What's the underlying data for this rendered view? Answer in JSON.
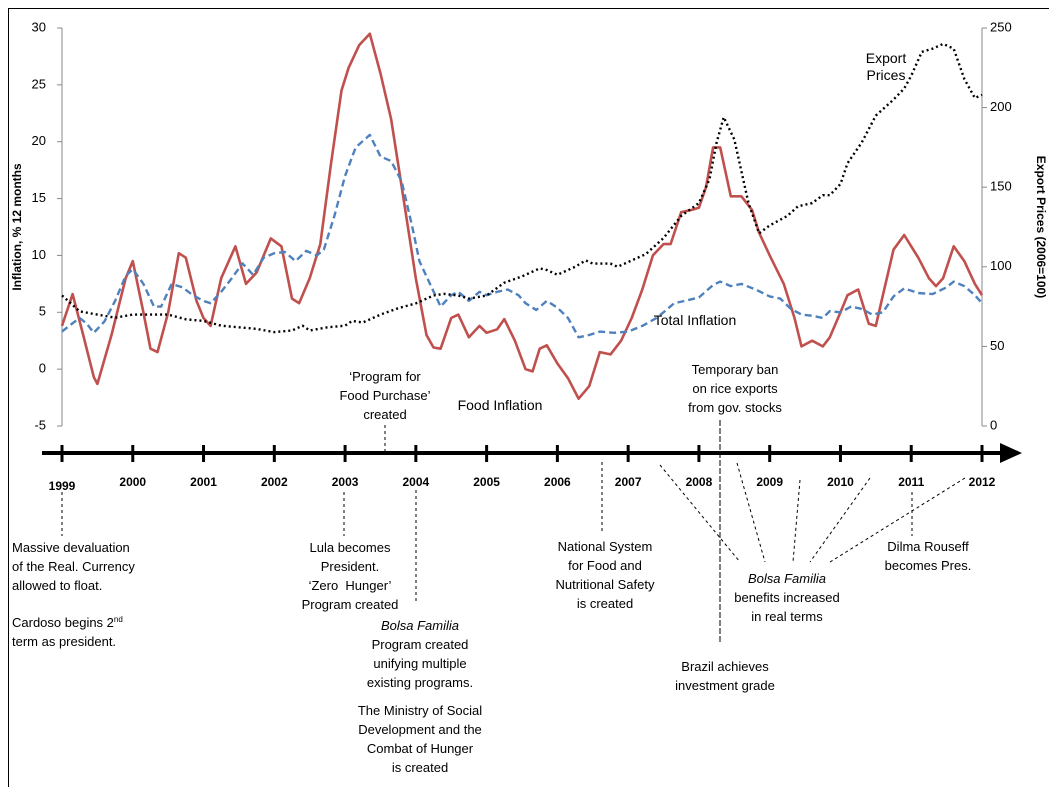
{
  "chart_data": {
    "type": "line",
    "y_label": "Inflation, % 12 months",
    "y2_label": "Export Prices (2006=100)",
    "xlim": [
      1999,
      2012
    ],
    "xticks": [
      1999,
      2000,
      2001,
      2002,
      2003,
      2004,
      2005,
      2006,
      2007,
      2008,
      2009,
      2010,
      2011,
      2012
    ],
    "ylim": [
      -5,
      30
    ],
    "yticks": [
      -5,
      0,
      5,
      10,
      15,
      20,
      25,
      30
    ],
    "y2lim": [
      0,
      250
    ],
    "y2ticks": [
      0,
      50,
      100,
      150,
      200,
      250
    ],
    "series": [
      {
        "name": "Food Inflation",
        "color": "#c0504d",
        "style": "solid",
        "x": [
          1999.0,
          1999.15,
          1999.3,
          1999.45,
          1999.5,
          1999.7,
          1999.9,
          2000.0,
          2000.15,
          2000.25,
          2000.35,
          2000.5,
          2000.65,
          2000.75,
          2000.9,
          2001.0,
          2001.1,
          2001.25,
          2001.45,
          2001.6,
          2001.75,
          2001.95,
          2002.1,
          2002.25,
          2002.35,
          2002.5,
          2002.65,
          2002.8,
          2002.95,
          2003.05,
          2003.2,
          2003.35,
          2003.5,
          2003.65,
          2003.75,
          2003.9,
          2004.0,
          2004.15,
          2004.25,
          2004.35,
          2004.5,
          2004.6,
          2004.75,
          2004.9,
          2005.0,
          2005.15,
          2005.25,
          2005.4,
          2005.55,
          2005.65,
          2005.75,
          2005.85,
          2006.0,
          2006.15,
          2006.3,
          2006.45,
          2006.6,
          2006.75,
          2006.9,
          2007.05,
          2007.2,
          2007.35,
          2007.5,
          2007.6,
          2007.75,
          2007.9,
          2008.0,
          2008.1,
          2008.2,
          2008.3,
          2008.45,
          2008.6,
          2008.75,
          2008.85,
          2009.0,
          2009.2,
          2009.35,
          2009.45,
          2009.6,
          2009.75,
          2009.85,
          2010.0,
          2010.1,
          2010.25,
          2010.4,
          2010.5,
          2010.6,
          2010.75,
          2010.9,
          2011.0,
          2011.1,
          2011.25,
          2011.35,
          2011.45,
          2011.6,
          2011.75,
          2011.9,
          2012.0
        ],
        "values": [
          3.8,
          6.6,
          3,
          -0.7,
          -1.3,
          3,
          8,
          9.5,
          5,
          1.8,
          1.5,
          5,
          10.2,
          9.8,
          6,
          4.5,
          3.8,
          8,
          10.8,
          7.5,
          8.5,
          11.5,
          10.8,
          6.2,
          5.8,
          8,
          11,
          18,
          24.5,
          26.5,
          28.5,
          29.5,
          26,
          22,
          18,
          12,
          8,
          3,
          1.9,
          1.8,
          4.5,
          4.8,
          2.8,
          3.8,
          3.2,
          3.5,
          4.4,
          2.5,
          0,
          -0.2,
          1.8,
          2.1,
          0.5,
          -0.8,
          -2.6,
          -1.5,
          1.5,
          1.3,
          2.5,
          4.5,
          7,
          10,
          11,
          11,
          13.8,
          14,
          14.2,
          16,
          19.5,
          19.5,
          15.2,
          15.2,
          14,
          12,
          10,
          7.5,
          4.5,
          2,
          2.5,
          2,
          2.8,
          5,
          6.5,
          7,
          4,
          3.8,
          6.5,
          10.5,
          11.8,
          10.8,
          9.8,
          8,
          7.3,
          8,
          10.8,
          9.5,
          7.5,
          6.5
        ]
      },
      {
        "name": "Total Inflation",
        "color": "#4f81bd",
        "style": "dashed",
        "x": [
          1999.0,
          1999.1,
          1999.25,
          1999.35,
          1999.45,
          1999.6,
          1999.75,
          1999.9,
          2000.0,
          2000.15,
          2000.3,
          2000.4,
          2000.55,
          2000.7,
          2000.85,
          2001.0,
          2001.1,
          2001.25,
          2001.4,
          2001.55,
          2001.7,
          2001.85,
          2002.0,
          2002.15,
          2002.3,
          2002.45,
          2002.6,
          2002.7,
          2002.85,
          2003.0,
          2003.15,
          2003.35,
          2003.5,
          2003.65,
          2003.8,
          2003.95,
          2004.05,
          2004.2,
          2004.35,
          2004.5,
          2004.6,
          2004.75,
          2004.9,
          2005.0,
          2005.15,
          2005.3,
          2005.45,
          2005.55,
          2005.7,
          2005.85,
          2006.0,
          2006.15,
          2006.3,
          2006.45,
          2006.6,
          2006.8,
          2007.0,
          2007.2,
          2007.4,
          2007.5,
          2007.65,
          2007.8,
          2008.0,
          2008.2,
          2008.3,
          2008.45,
          2008.6,
          2008.8,
          2009.0,
          2009.15,
          2009.3,
          2009.45,
          2009.6,
          2009.75,
          2009.85,
          2010.0,
          2010.15,
          2010.3,
          2010.45,
          2010.6,
          2010.75,
          2010.9,
          2011.1,
          2011.3,
          2011.5,
          2011.6,
          2011.75,
          2011.9,
          2012.0
        ],
        "values": [
          3.3,
          3.8,
          4.5,
          4,
          3.2,
          4.2,
          6,
          8.2,
          8.8,
          7.5,
          5.5,
          5.5,
          7.5,
          7.2,
          6.5,
          6,
          5.8,
          6.8,
          8,
          9.3,
          8.3,
          9.8,
          10.2,
          10.3,
          9.5,
          10.4,
          10,
          10.5,
          13.5,
          17,
          19.5,
          20.6,
          18.7,
          18.3,
          16.5,
          12.5,
          9.5,
          7.5,
          5.5,
          6.5,
          6.8,
          6,
          6.8,
          6.5,
          6.8,
          7,
          6.5,
          5.8,
          5.2,
          6,
          5.4,
          4.5,
          2.8,
          3,
          3.3,
          3.2,
          3.3,
          3.8,
          4.5,
          5,
          5.8,
          6,
          6.3,
          7.4,
          7.7,
          7.3,
          7.5,
          7,
          6.4,
          6.2,
          5.3,
          4.8,
          4.7,
          4.5,
          5.1,
          5,
          5.5,
          5.3,
          4.8,
          5,
          6.4,
          7.1,
          6.7,
          6.6,
          7.2,
          7.7,
          7.3,
          6.5,
          5.8
        ]
      },
      {
        "name": "Export Prices",
        "color": "#000000",
        "style": "dotted",
        "axis": "y2",
        "x": [
          1999.0,
          1999.1,
          1999.25,
          1999.5,
          1999.75,
          2000.0,
          2000.25,
          2000.5,
          2000.75,
          2001.0,
          2001.25,
          2001.5,
          2001.75,
          2002.0,
          2002.25,
          2002.4,
          2002.5,
          2002.75,
          2003.0,
          2003.1,
          2003.25,
          2003.5,
          2003.75,
          2004.0,
          2004.25,
          2004.4,
          2004.6,
          2004.75,
          2005.0,
          2005.25,
          2005.5,
          2005.75,
          2005.85,
          2006.0,
          2006.25,
          2006.4,
          2006.5,
          2006.75,
          2006.85,
          2007.0,
          2007.25,
          2007.5,
          2007.75,
          2008.0,
          2008.15,
          2008.25,
          2008.35,
          2008.5,
          2008.7,
          2008.85,
          2009.0,
          2009.25,
          2009.4,
          2009.6,
          2009.75,
          2009.85,
          2010.0,
          2010.1,
          2010.3,
          2010.5,
          2010.75,
          2010.9,
          2011.0,
          2011.15,
          2011.3,
          2011.45,
          2011.6,
          2011.75,
          2011.9,
          2012.0
        ],
        "values": [
          82,
          78,
          72,
          70,
          68,
          70,
          70,
          70,
          67,
          66,
          63,
          62,
          61,
          59,
          60,
          63,
          60,
          62,
          63,
          66,
          65,
          70,
          74,
          77,
          82,
          83,
          82,
          80,
          82,
          90,
          94,
          99,
          98,
          95,
          100,
          104,
          102,
          102,
          100,
          103,
          108,
          118,
          132,
          140,
          155,
          178,
          194,
          180,
          140,
          121,
          126,
          132,
          138,
          140,
          145,
          145,
          152,
          165,
          178,
          195,
          205,
          212,
          220,
          235,
          237,
          240,
          237,
          218,
          206,
          208
        ]
      }
    ]
  },
  "events": [
    {
      "lines": [
        "Massive devaluation",
        "of the Real. Currency",
        "allowed to float."
      ]
    },
    {
      "text": "Cardoso begins 2",
      "sup": "nd",
      "lines": [
        "term as president."
      ]
    },
    {
      "lines": [
        "Lula becomes",
        "President.",
        "‘Zero  Hunger’",
        "Program created"
      ]
    },
    {
      "lines": [
        "‘Program for",
        "Food Purchase’",
        "created"
      ]
    },
    {
      "title": "Bolsa Familia",
      "lines": [
        "Program created",
        "unifying multiple",
        "existing programs."
      ]
    },
    {
      "lines": [
        "The Ministry of Social",
        "Development and the",
        "Combat of Hunger",
        "is created"
      ]
    },
    {
      "lines": [
        "National System",
        "for Food and",
        "Nutritional Safety",
        "is created"
      ]
    },
    {
      "lines": [
        "Temporary ban",
        "on rice exports",
        "from gov. stocks"
      ]
    },
    {
      "title": "Bolsa Familia",
      "lines": [
        "benefits increased",
        "in real terms"
      ]
    },
    {
      "lines": [
        "Brazil achieves",
        "investment grade"
      ]
    },
    {
      "lines": [
        "Dilma Rouseff",
        "becomes Pres."
      ]
    }
  ]
}
